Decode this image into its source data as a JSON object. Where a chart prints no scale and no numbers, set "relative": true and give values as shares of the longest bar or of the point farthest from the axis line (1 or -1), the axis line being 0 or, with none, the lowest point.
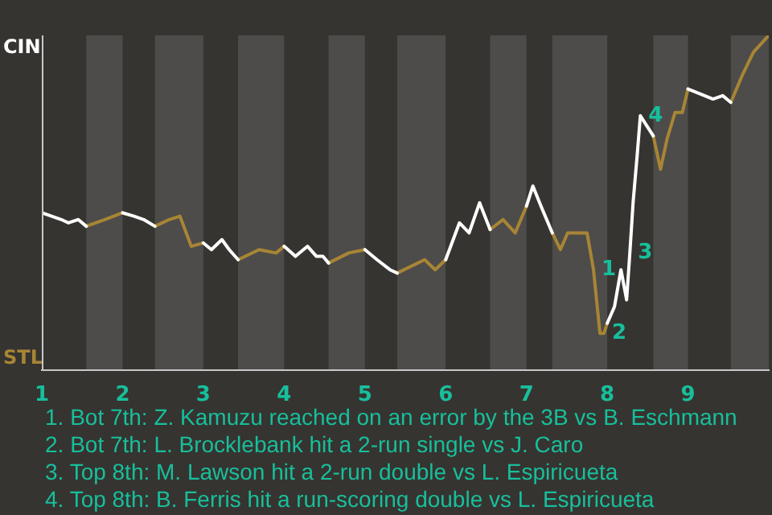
{
  "chart_data": {
    "type": "line",
    "relative": true,
    "x": [
      1.0,
      1.12,
      1.24,
      1.33,
      1.45,
      1.55,
      1.78,
      2.0,
      2.14,
      2.26,
      2.4,
      2.58,
      2.71,
      2.85,
      3.0,
      3.1,
      3.23,
      3.32,
      3.43,
      3.69,
      3.9,
      4.0,
      4.14,
      4.29,
      4.4,
      4.48,
      4.55,
      4.8,
      5.0,
      5.15,
      5.31,
      5.4,
      5.74,
      5.87,
      6.0,
      6.17,
      6.29,
      6.42,
      6.55,
      6.71,
      6.86,
      7.0,
      7.08,
      7.18,
      7.32,
      7.42,
      7.51,
      7.75,
      7.83,
      7.91,
      7.96,
      8.0,
      8.09,
      8.17,
      8.24,
      8.28,
      8.32,
      8.37,
      8.41,
      8.49,
      8.57,
      8.66,
      8.74,
      8.84,
      8.93,
      9.0,
      9.31,
      9.43,
      9.53,
      9.67,
      9.81,
      10.0
    ],
    "series": [
      {
        "name": "CIN",
        "color": "#ffffff",
        "values": [
          0.47,
          0.46,
          0.45,
          0.44,
          0.45,
          0.43,
          null,
          0.47,
          0.46,
          0.45,
          0.43,
          null,
          null,
          null,
          0.38,
          0.36,
          0.39,
          0.36,
          0.33,
          null,
          null,
          0.37,
          0.34,
          0.37,
          0.34,
          0.34,
          0.32,
          null,
          0.36,
          0.33,
          0.3,
          0.29,
          null,
          null,
          0.33,
          0.44,
          0.41,
          0.5,
          0.42,
          null,
          null,
          0.49,
          0.55,
          0.49,
          0.41,
          null,
          null,
          null,
          null,
          null,
          null,
          0.14,
          0.19,
          0.3,
          0.21,
          0.35,
          0.5,
          0.64,
          0.76,
          0.73,
          0.7,
          null,
          null,
          null,
          null,
          0.84,
          0.81,
          0.82,
          0.8,
          null,
          null,
          null
        ]
      },
      {
        "name": "STL",
        "color": "#a88535",
        "values": [
          null,
          null,
          null,
          null,
          null,
          0.43,
          0.45,
          0.47,
          null,
          null,
          0.43,
          0.45,
          0.46,
          0.37,
          0.38,
          null,
          null,
          null,
          0.33,
          0.36,
          0.35,
          0.37,
          null,
          null,
          null,
          null,
          0.32,
          0.35,
          0.36,
          null,
          null,
          0.29,
          0.33,
          0.3,
          0.33,
          null,
          null,
          null,
          0.42,
          0.45,
          0.41,
          0.49,
          null,
          null,
          0.41,
          0.36,
          0.41,
          0.41,
          0.3,
          0.11,
          0.11,
          0.14,
          null,
          null,
          null,
          null,
          null,
          null,
          null,
          null,
          0.7,
          0.6,
          0.69,
          0.77,
          0.77,
          0.84,
          null,
          null,
          0.8,
          0.88,
          0.95,
          1
        ]
      }
    ],
    "xlim": [
      1,
      10
    ],
    "xticks": [
      1,
      2,
      3,
      4,
      5,
      6,
      7,
      8,
      9
    ],
    "legend": false,
    "marker": "none",
    "line_style": "solid",
    "bands": [
      {
        "axis": "x",
        "from": 1.55,
        "to": 2,
        "color": "#4d4c4a"
      },
      {
        "axis": "x",
        "from": 2.4,
        "to": 3,
        "color": "#4d4c4a"
      },
      {
        "axis": "x",
        "from": 3.43,
        "to": 4,
        "color": "#4d4c4a"
      },
      {
        "axis": "x",
        "from": 4.55,
        "to": 5,
        "color": "#4d4c4a"
      },
      {
        "axis": "x",
        "from": 5.4,
        "to": 6,
        "color": "#4d4c4a"
      },
      {
        "axis": "x",
        "from": 6.55,
        "to": 7,
        "color": "#4d4c4a"
      },
      {
        "axis": "x",
        "from": 7.32,
        "to": 8,
        "color": "#4d4c4a"
      },
      {
        "axis": "x",
        "from": 8.57,
        "to": 9,
        "color": "#4d4c4a"
      },
      {
        "axis": "x",
        "from": 9.53,
        "to": 10,
        "color": "#4d4c4a"
      }
    ],
    "annotations": [
      {
        "text": "1",
        "x": 7.83,
        "y": 0.3
      },
      {
        "text": "2",
        "x": 7.96,
        "y": 0.11
      },
      {
        "text": "3",
        "x": 8.28,
        "y": 0.35
      },
      {
        "text": "4",
        "x": 8.41,
        "y": 0.76
      },
      "1. Bot 7th: Z. Kamuzu reached on an error by the 3B vs B. Eschmann",
      "2. Bot 7th: L. Brocklebank hit a 2-run single vs J. Caro",
      "3. Top 8th: M. Lawson hit a 2-run double vs L. Espiricueta",
      "4. Top 8th: B. Ferris hit a run-scoring double vs L. Espiricueta"
    ]
  }
}
